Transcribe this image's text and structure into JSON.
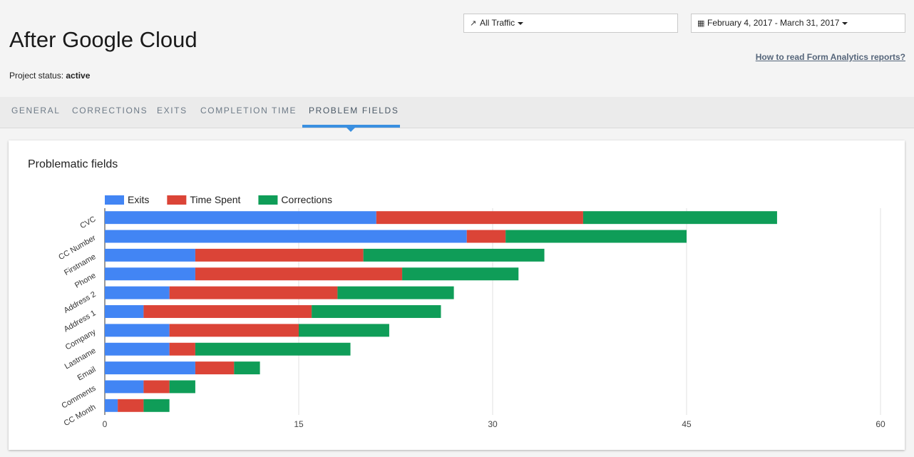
{
  "header": {
    "title": "After Google Cloud",
    "status_label": "Project status:",
    "status_value": "active",
    "traffic_label": "All Traffic",
    "traffic_icon": "arrows-collapse-icon",
    "date_range": "February 4, 2017 - March 31, 2017",
    "date_icon": "calendar-icon",
    "help_link": "How to read Form Analytics reports?"
  },
  "tabs": [
    {
      "label": "GENERAL"
    },
    {
      "label": "CORRECTIONS"
    },
    {
      "label": "EXITS"
    },
    {
      "label": "COMPLETION TIME"
    },
    {
      "label": "PROBLEM FIELDS",
      "active": true
    }
  ],
  "card": {
    "title": "Problematic fields"
  },
  "colors": {
    "exits": "#4285f4",
    "time_spent": "#db4437",
    "corrections": "#0f9d58",
    "tab_active": "#3a8fe0"
  },
  "chart_data": {
    "type": "bar",
    "orientation": "horizontal",
    "stacked": true,
    "title": "",
    "categories": [
      "CVC",
      "CC Number",
      "Firstname",
      "Phone",
      "Address 2",
      "Address 1",
      "Company",
      "Lastname",
      "Email",
      "Comments",
      "CC Month"
    ],
    "series": [
      {
        "name": "Exits",
        "values": [
          21,
          28,
          7,
          7,
          5,
          3,
          5,
          5,
          7,
          3,
          1
        ]
      },
      {
        "name": "Time Spent",
        "values": [
          16,
          3,
          13,
          16,
          13,
          13,
          10,
          2,
          3,
          2,
          2
        ]
      },
      {
        "name": "Corrections",
        "values": [
          15,
          14,
          14,
          9,
          9,
          10,
          7,
          12,
          2,
          2,
          2
        ]
      }
    ],
    "xlim": [
      0,
      60
    ],
    "xticks": [
      0,
      15,
      30,
      45,
      60
    ],
    "grid": true,
    "legend": "top-left"
  }
}
